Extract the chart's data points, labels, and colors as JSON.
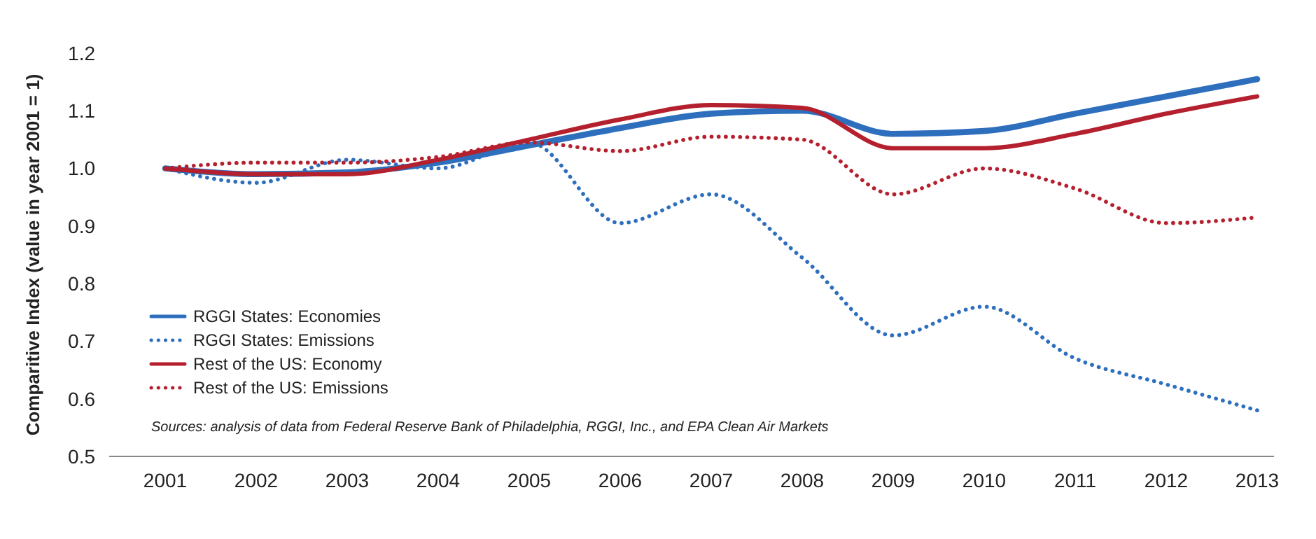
{
  "chart_data": {
    "type": "line",
    "ylabel": "Comparitive Index (value in year 2001 = 1)",
    "categories": [
      "2001",
      "2002",
      "2003",
      "2004",
      "2005",
      "2006",
      "2007",
      "2008",
      "2009",
      "2010",
      "2011",
      "2012",
      "2013"
    ],
    "ylim": [
      0.5,
      1.2
    ],
    "yticks": [
      {
        "value": 0.5,
        "label": "0.5"
      },
      {
        "value": 0.6,
        "label": "0.6"
      },
      {
        "value": 0.7,
        "label": "0.7"
      },
      {
        "value": 0.8,
        "label": "0.8"
      },
      {
        "value": 0.9,
        "label": "0.9"
      },
      {
        "value": 1.0,
        "label": "1.0"
      },
      {
        "value": 1.1,
        "label": "1.1"
      },
      {
        "value": 1.2,
        "label": "1.2"
      }
    ],
    "grid": false,
    "legend": "bottom left",
    "series": [
      {
        "name": "RGGI States: Economies",
        "color": "#2e6fbd",
        "line_style": "solid",
        "values": [
          1.0,
          0.99,
          0.993,
          1.01,
          1.04,
          1.07,
          1.095,
          1.1,
          1.06,
          1.065,
          1.095,
          1.125,
          1.155
        ]
      },
      {
        "name": "RGGI States: Emissions",
        "color": "#2e6fbd",
        "line_style": "dotted",
        "values": [
          1.0,
          0.975,
          1.015,
          1.0,
          1.045,
          0.905,
          0.955,
          0.845,
          0.71,
          0.76,
          0.67,
          0.625,
          0.58
        ]
      },
      {
        "name": "Rest of the US: Economy",
        "color": "#b5202e",
        "line_style": "solid",
        "values": [
          1.0,
          0.99,
          0.99,
          1.015,
          1.05,
          1.085,
          1.11,
          1.105,
          1.035,
          1.035,
          1.06,
          1.095,
          1.125
        ]
      },
      {
        "name": "Rest of the US: Emissions",
        "color": "#b5202e",
        "line_style": "dotted",
        "values": [
          1.0,
          1.01,
          1.01,
          1.02,
          1.045,
          1.03,
          1.055,
          1.05,
          0.955,
          1.0,
          0.965,
          0.905,
          0.915
        ]
      }
    ],
    "annotations": [
      "Sources: analysis of data from Federal Reserve Bank of Philadelphia, RGGI, Inc., and EPA Clean Air Markets"
    ]
  }
}
